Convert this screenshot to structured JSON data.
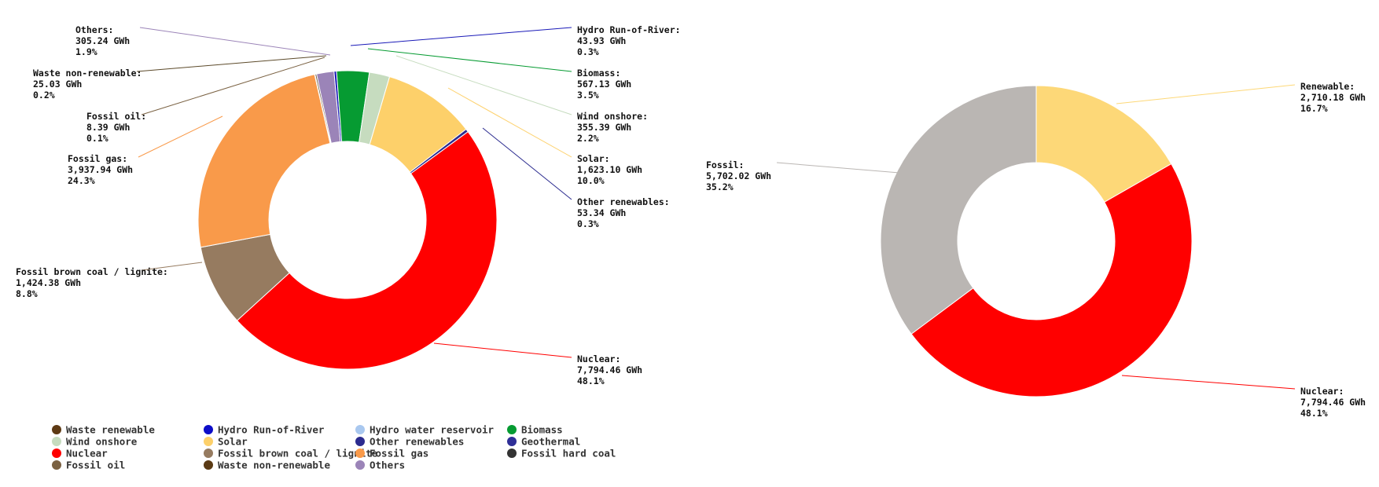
{
  "chart_data": [
    {
      "type": "pie",
      "style": "donut",
      "unit": "GWh",
      "slices": [
        {
          "key": "others",
          "name": "Others",
          "value_text": "305.24 GWh",
          "pct_text": "1.9%",
          "value": 305.24,
          "pct": 1.9,
          "color": "#9b84b8",
          "labeled": true
        },
        {
          "key": "waste_renewable",
          "name": "Waste renewable",
          "value": 0,
          "pct": 0,
          "color": "#5e3a14",
          "labeled": false
        },
        {
          "key": "hydro_ror",
          "name": "Hydro Run-of-River",
          "value_text": "43.93 GWh",
          "pct_text": "0.3%",
          "value": 43.93,
          "pct": 0.3,
          "color": "#1a1ab8",
          "labeled": true
        },
        {
          "key": "hydro_reservoir",
          "name": "Hydro water reservoir",
          "value": 0,
          "pct": 0,
          "color": "#a9c8ef",
          "labeled": false
        },
        {
          "key": "biomass",
          "name": "Biomass",
          "value_text": "567.13 GWh",
          "pct_text": "3.5%",
          "value": 567.13,
          "pct": 3.5,
          "color": "#069b32",
          "labeled": true
        },
        {
          "key": "wind_onshore",
          "name": "Wind onshore",
          "value_text": "355.39 GWh",
          "pct_text": "2.2%",
          "value": 355.39,
          "pct": 2.2,
          "color": "#c6dcbf",
          "labeled": true
        },
        {
          "key": "solar",
          "name": "Solar",
          "value_text": "1,623.10 GWh",
          "pct_text": "10.0%",
          "value": 1623.1,
          "pct": 10.0,
          "color": "#fdd06a",
          "labeled": true
        },
        {
          "key": "other_renewables",
          "name": "Other renewables",
          "value_text": "53.34 GWh",
          "pct_text": "0.3%",
          "value": 53.34,
          "pct": 0.3,
          "color": "#2b2b8f",
          "labeled": true
        },
        {
          "key": "geothermal",
          "name": "Geothermal",
          "value": 0,
          "pct": 0,
          "color": "#2f2f97",
          "labeled": false
        },
        {
          "key": "nuclear",
          "name": "Nuclear",
          "value_text": "7,794.46 GWh",
          "pct_text": "48.1%",
          "value": 7794.46,
          "pct": 48.1,
          "color": "#ff0000",
          "labeled": true
        },
        {
          "key": "hard_coal",
          "name": "Fossil hard coal",
          "value": 0,
          "pct": 0,
          "color": "#333333",
          "labeled": false
        },
        {
          "key": "brown_coal",
          "name": "Fossil brown coal / lignite",
          "value_text": "1,424.38 GWh",
          "pct_text": "8.8%",
          "value": 1424.38,
          "pct": 8.8,
          "color": "#967b60",
          "labeled": true
        },
        {
          "key": "gas",
          "name": "Fossil gas",
          "value_text": "3,937.94 GWh",
          "pct_text": "24.3%",
          "value": 3937.94,
          "pct": 24.3,
          "color": "#f99a4a",
          "labeled": true
        },
        {
          "key": "oil",
          "name": "Fossil oil",
          "value_text": "8.39 GWh",
          "pct_text": "0.1%",
          "value": 8.39,
          "pct": 0.1,
          "color": "#7a6142",
          "labeled": true
        },
        {
          "key": "waste_nonrenewable",
          "name": "Waste non-renewable",
          "value_text": "25.03 GWh",
          "pct_text": "0.2%",
          "value": 25.03,
          "pct": 0.2,
          "color": "#5c4a2a",
          "labeled": true
        }
      ],
      "legend": {
        "placement": "bottom-left",
        "columns": 4,
        "items": [
          {
            "name": "Waste renewable",
            "color": "#5e3a14"
          },
          {
            "name": "Hydro Run-of-River",
            "color": "#0d0dc8"
          },
          {
            "name": "Hydro water reservoir",
            "color": "#a9c8ef"
          },
          {
            "name": "Biomass",
            "color": "#069b32"
          },
          {
            "name": "Wind onshore",
            "color": "#c6dcbf"
          },
          {
            "name": "Solar",
            "color": "#fdd06a"
          },
          {
            "name": "Other renewables",
            "color": "#2b2b8f"
          },
          {
            "name": "Geothermal",
            "color": "#2f2f97"
          },
          {
            "name": "Nuclear",
            "color": "#ff0000"
          },
          {
            "name": "Fossil brown coal / lignite",
            "color": "#967b60"
          },
          {
            "name": "Fossil gas",
            "color": "#f99a4a"
          },
          {
            "name": "Fossil hard coal",
            "color": "#333333"
          },
          {
            "name": "Fossil oil",
            "color": "#7a6142"
          },
          {
            "name": "Waste non-renewable",
            "color": "#5a3a14"
          },
          {
            "name": "Others",
            "color": "#9b84b8"
          }
        ]
      }
    },
    {
      "type": "pie",
      "style": "donut",
      "unit": "GWh",
      "slices": [
        {
          "key": "renewable",
          "name": "Renewable",
          "value_text": "2,710.18 GWh",
          "pct_text": "16.7%",
          "value": 2710.18,
          "pct": 16.7,
          "color": "#fdd878",
          "labeled": true
        },
        {
          "key": "nuclear",
          "name": "Nuclear",
          "value_text": "7,794.46 GWh",
          "pct_text": "48.1%",
          "value": 7794.46,
          "pct": 48.1,
          "color": "#ff0000",
          "labeled": true
        },
        {
          "key": "fossil",
          "name": "Fossil",
          "value_text": "5,702.02 GWh",
          "pct_text": "35.2%",
          "value": 5702.02,
          "pct": 35.2,
          "color": "#bab6b3",
          "labeled": true
        }
      ]
    }
  ]
}
